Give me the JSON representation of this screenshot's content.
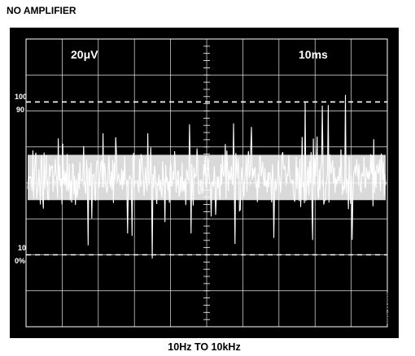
{
  "header": {
    "title": "NO AMPLIFIER"
  },
  "footer": {
    "caption": "10Hz TO 10kHz",
    "figure_id": "00841-008"
  },
  "scope": {
    "vertical_scale": "20μV",
    "time_scale": "10ms",
    "markers": {
      "m100": "100",
      "m90": "90",
      "m10": "10",
      "m0": "0%"
    },
    "background_color": "#000000",
    "trace_color": "#ffffff"
  },
  "chart_data": {
    "type": "line",
    "x_divisions": 10,
    "y_divisions": 8,
    "x_per_division_ms": 10,
    "y_per_division_uV": 20,
    "trace_center_division": 4.15,
    "noise_peak_to_peak_divisions": 2.8,
    "reference_levels_division": [
      6.25,
      2.0
    ],
    "grid": true,
    "samples": 480
  }
}
